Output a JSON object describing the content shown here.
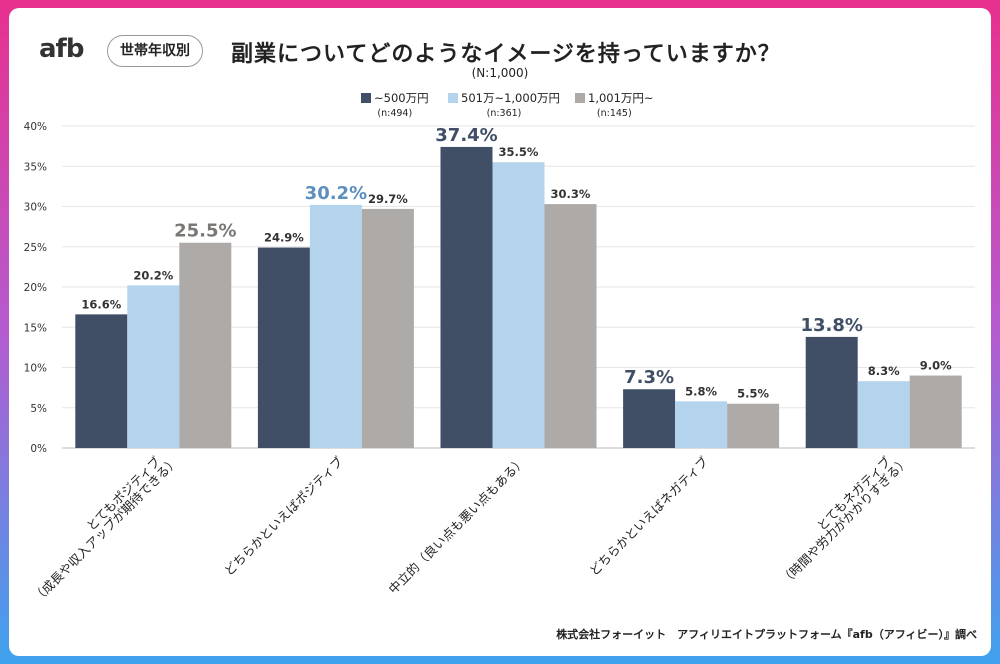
{
  "header": {
    "logo": "afb",
    "tag": "世帯年収別",
    "title": "副業についてどのようなイメージを持っていますか？",
    "sample": "(N:1,000)"
  },
  "footer": "株式会社フォーイット　アフィリエイトプラットフォーム『afb（アフィビー）』調べ",
  "colors": {
    "series1": "#414f66",
    "series2": "#b3d4ec",
    "series3": "#aeaaa8",
    "highlight_s1": "#414f66",
    "highlight_s2": "#5b8fbf",
    "highlight_s3": "#7a7775",
    "gradient_top": "#e8308e",
    "gradient_bottom": "#3fa2ee"
  },
  "chart_data": {
    "type": "bar",
    "title": "副業についてどのようなイメージを持っていますか？",
    "subtitle": "(N:1,000)",
    "xlabel": "",
    "ylabel": "",
    "ylim": [
      0,
      40
    ],
    "yticks": [
      "0%",
      "5%",
      "10%",
      "15%",
      "20%",
      "25%",
      "30%",
      "35%",
      "40%"
    ],
    "ytick_values": [
      0,
      5,
      10,
      15,
      20,
      25,
      30,
      35,
      40
    ],
    "grid": true,
    "legend_position": "top-center",
    "categories": [
      [
        "とてもポジティブ",
        "（成長や収入アップが期待できる）"
      ],
      [
        "どちらかといえばポジティブ"
      ],
      [
        "中立的（良い点も悪い点もある）"
      ],
      [
        "どちらかといえばネガティブ"
      ],
      [
        "とてもネガティブ",
        "（時間や労力がかかりすぎる）"
      ]
    ],
    "series": [
      {
        "name": "~500万円",
        "n": "(n:494)",
        "values": [
          16.6,
          24.9,
          37.4,
          7.3,
          13.8
        ],
        "labels": [
          "16.6%",
          "24.9%",
          "37.4%",
          "7.3%",
          "13.8%"
        ]
      },
      {
        "name": "501万~1,000万円",
        "n": "(n:361)",
        "values": [
          20.2,
          30.2,
          35.5,
          5.8,
          8.3
        ],
        "labels": [
          "20.2%",
          "30.2%",
          "35.5%",
          "5.8%",
          "8.3%"
        ]
      },
      {
        "name": "1,001万円~",
        "n": "(n:145)",
        "values": [
          25.5,
          29.7,
          30.3,
          5.5,
          9.0
        ],
        "labels": [
          "25.5%",
          "29.7%",
          "30.3%",
          "5.5%",
          "9.0%"
        ]
      }
    ],
    "highlighted": [
      [
        0,
        2
      ],
      [
        1,
        1
      ],
      [
        2,
        0
      ],
      [
        3,
        0
      ],
      [
        4,
        0
      ]
    ]
  }
}
